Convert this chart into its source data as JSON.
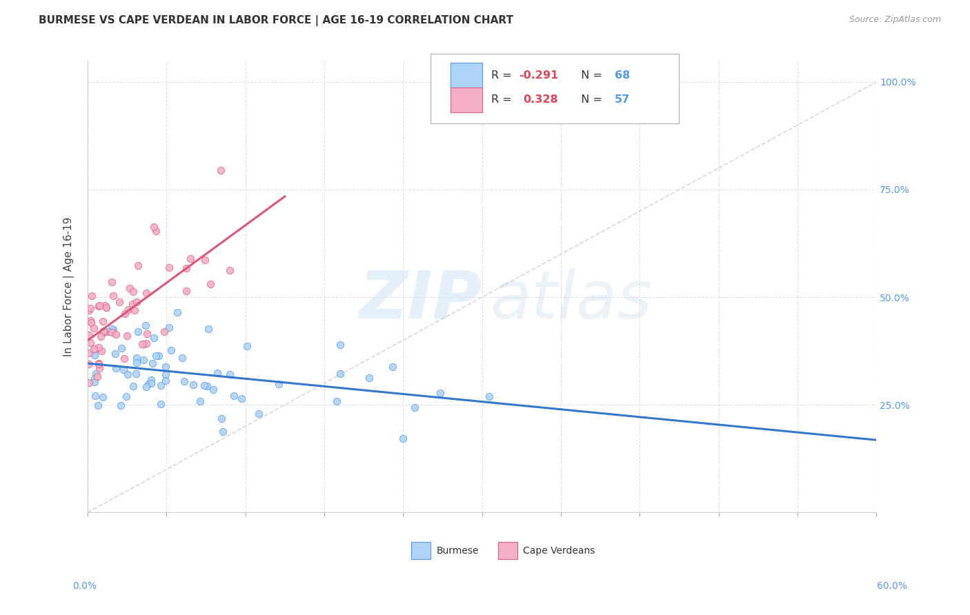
{
  "title": "BURMESE VS CAPE VERDEAN IN LABOR FORCE | AGE 16-19 CORRELATION CHART",
  "source": "Source: ZipAtlas.com",
  "ylabel": "In Labor Force | Age 16-19",
  "xlim": [
    0.0,
    0.6
  ],
  "ylim": [
    0.0,
    1.05
  ],
  "burmese_color": "#aed4f5",
  "cape_verdean_color": "#f5aec8",
  "burmese_edge_color": "#5599ee",
  "cape_verdean_edge_color": "#e0607a",
  "burmese_trend_color": "#3377cc",
  "cape_verdean_trend_color": "#dd5577",
  "diagonal_color": "#cccccc",
  "legend_R_burmese": "-0.291",
  "legend_N_burmese": "68",
  "legend_R_cape": "0.328",
  "legend_N_cape": "57",
  "grid_color": "#e0e0ec",
  "background_color": "#ffffff",
  "r_color": "#dd4455",
  "n_color": "#5599ee",
  "ytick_color": "#5599ee",
  "xtick_color": "#5599ee"
}
